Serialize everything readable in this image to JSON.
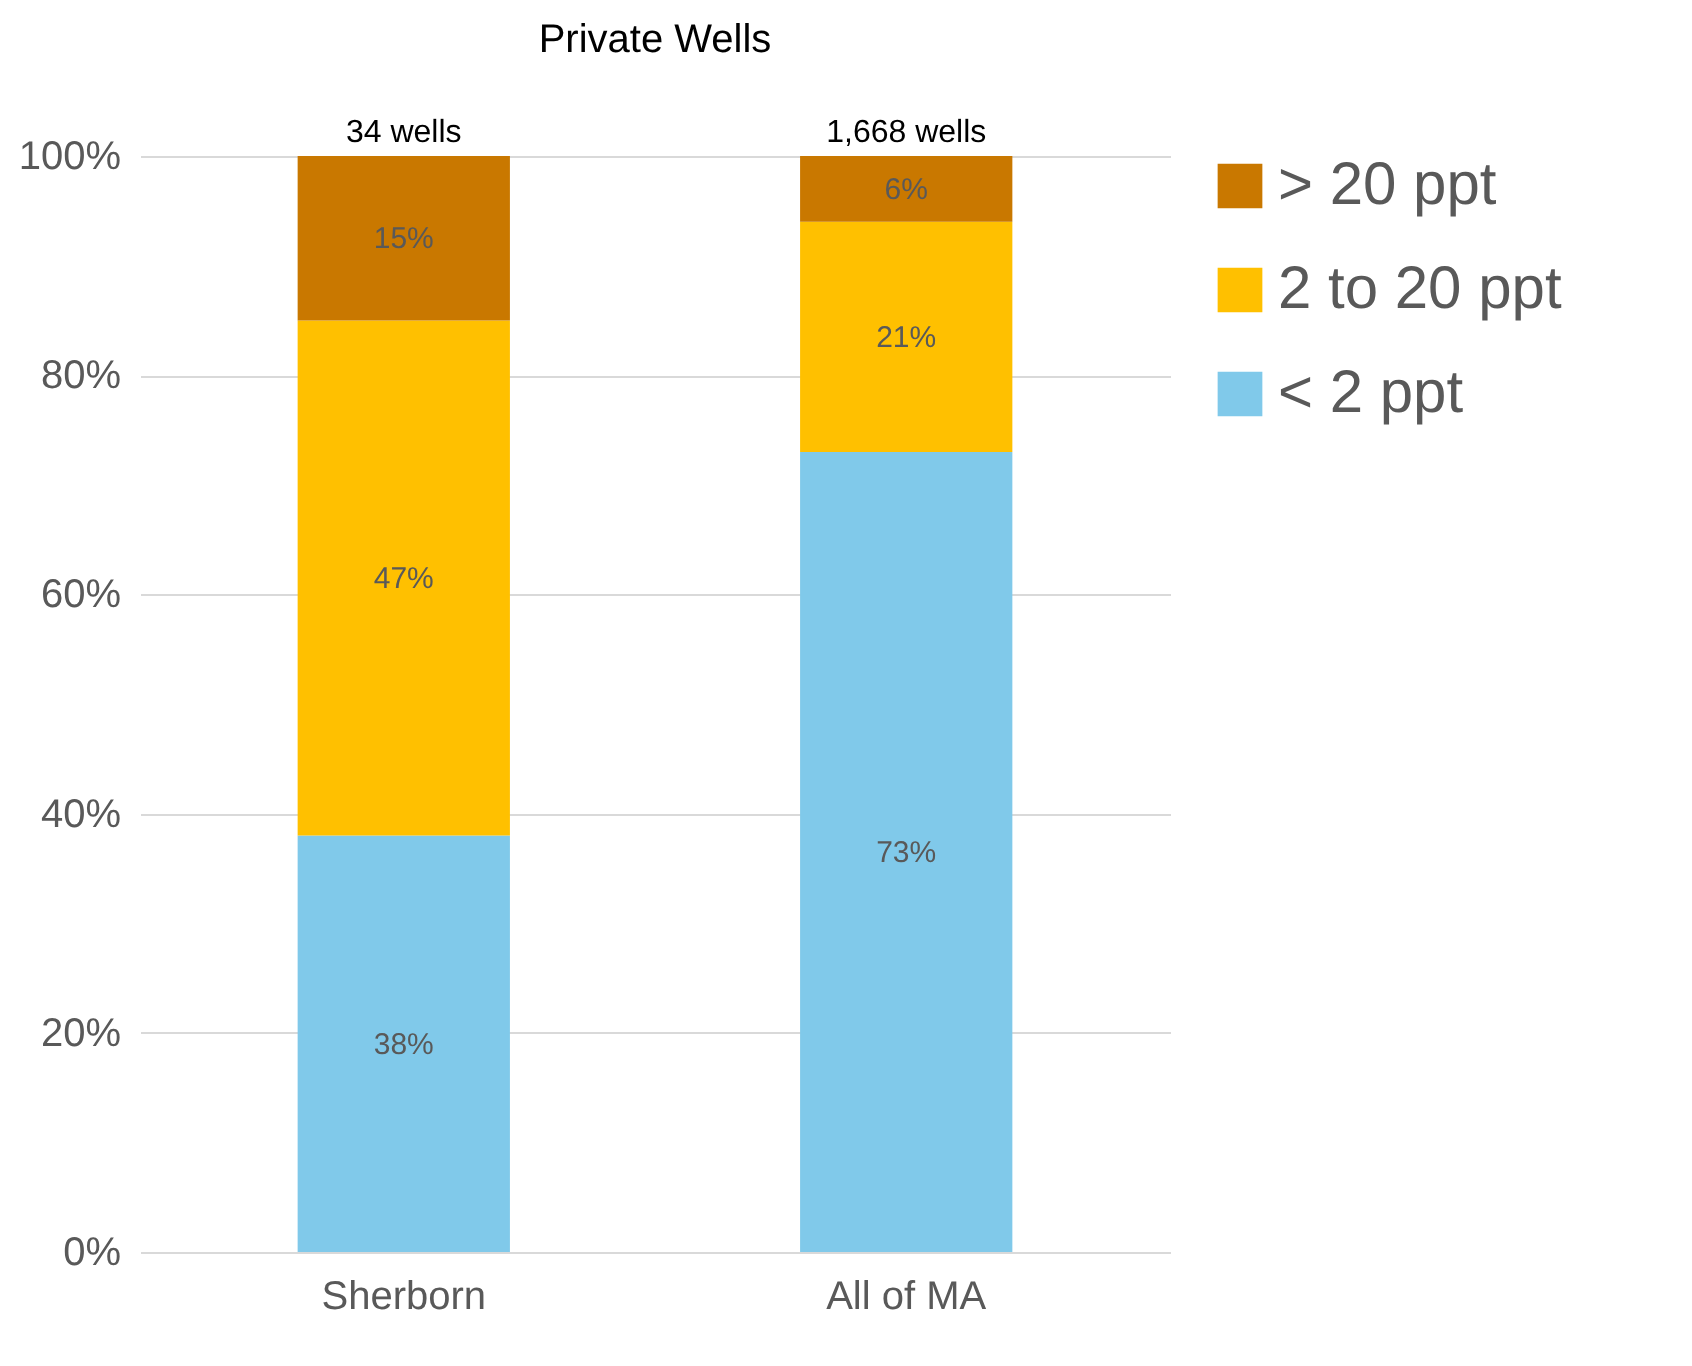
{
  "chart_data": {
    "type": "bar",
    "title": "Private Wells",
    "categories": [
      "Sherborn",
      "All of MA"
    ],
    "stacked": true,
    "series": [
      {
        "name": "< 2 ppt",
        "color": "#80c9ea",
        "values": [
          38,
          73
        ],
        "value_labels": [
          "38%",
          "73%"
        ]
      },
      {
        "name": "2 to 20 ppt",
        "color": "#ffc000",
        "values": [
          47,
          21
        ],
        "value_labels": [
          "47%",
          "21%"
        ]
      },
      {
        "name": "> 20 ppt",
        "color": "#c97800",
        "values": [
          15,
          6
        ],
        "value_labels": [
          "15%",
          "6%"
        ]
      }
    ],
    "ylim": [
      0,
      100
    ],
    "yticks": [
      {
        "value": 0,
        "label": "0%"
      },
      {
        "value": 20,
        "label": "20%"
      },
      {
        "value": 40,
        "label": "40%"
      },
      {
        "value": 60,
        "label": "60%"
      },
      {
        "value": 80,
        "label": "80%"
      },
      {
        "value": 100,
        "label": "100%"
      }
    ],
    "grid": "y",
    "legend": "right",
    "annotations": [
      {
        "text": "34 wells",
        "x": "Sherborn",
        "y": 100
      },
      {
        "text": "1,668 wells",
        "x": "All of MA",
        "y": 100
      }
    ]
  }
}
